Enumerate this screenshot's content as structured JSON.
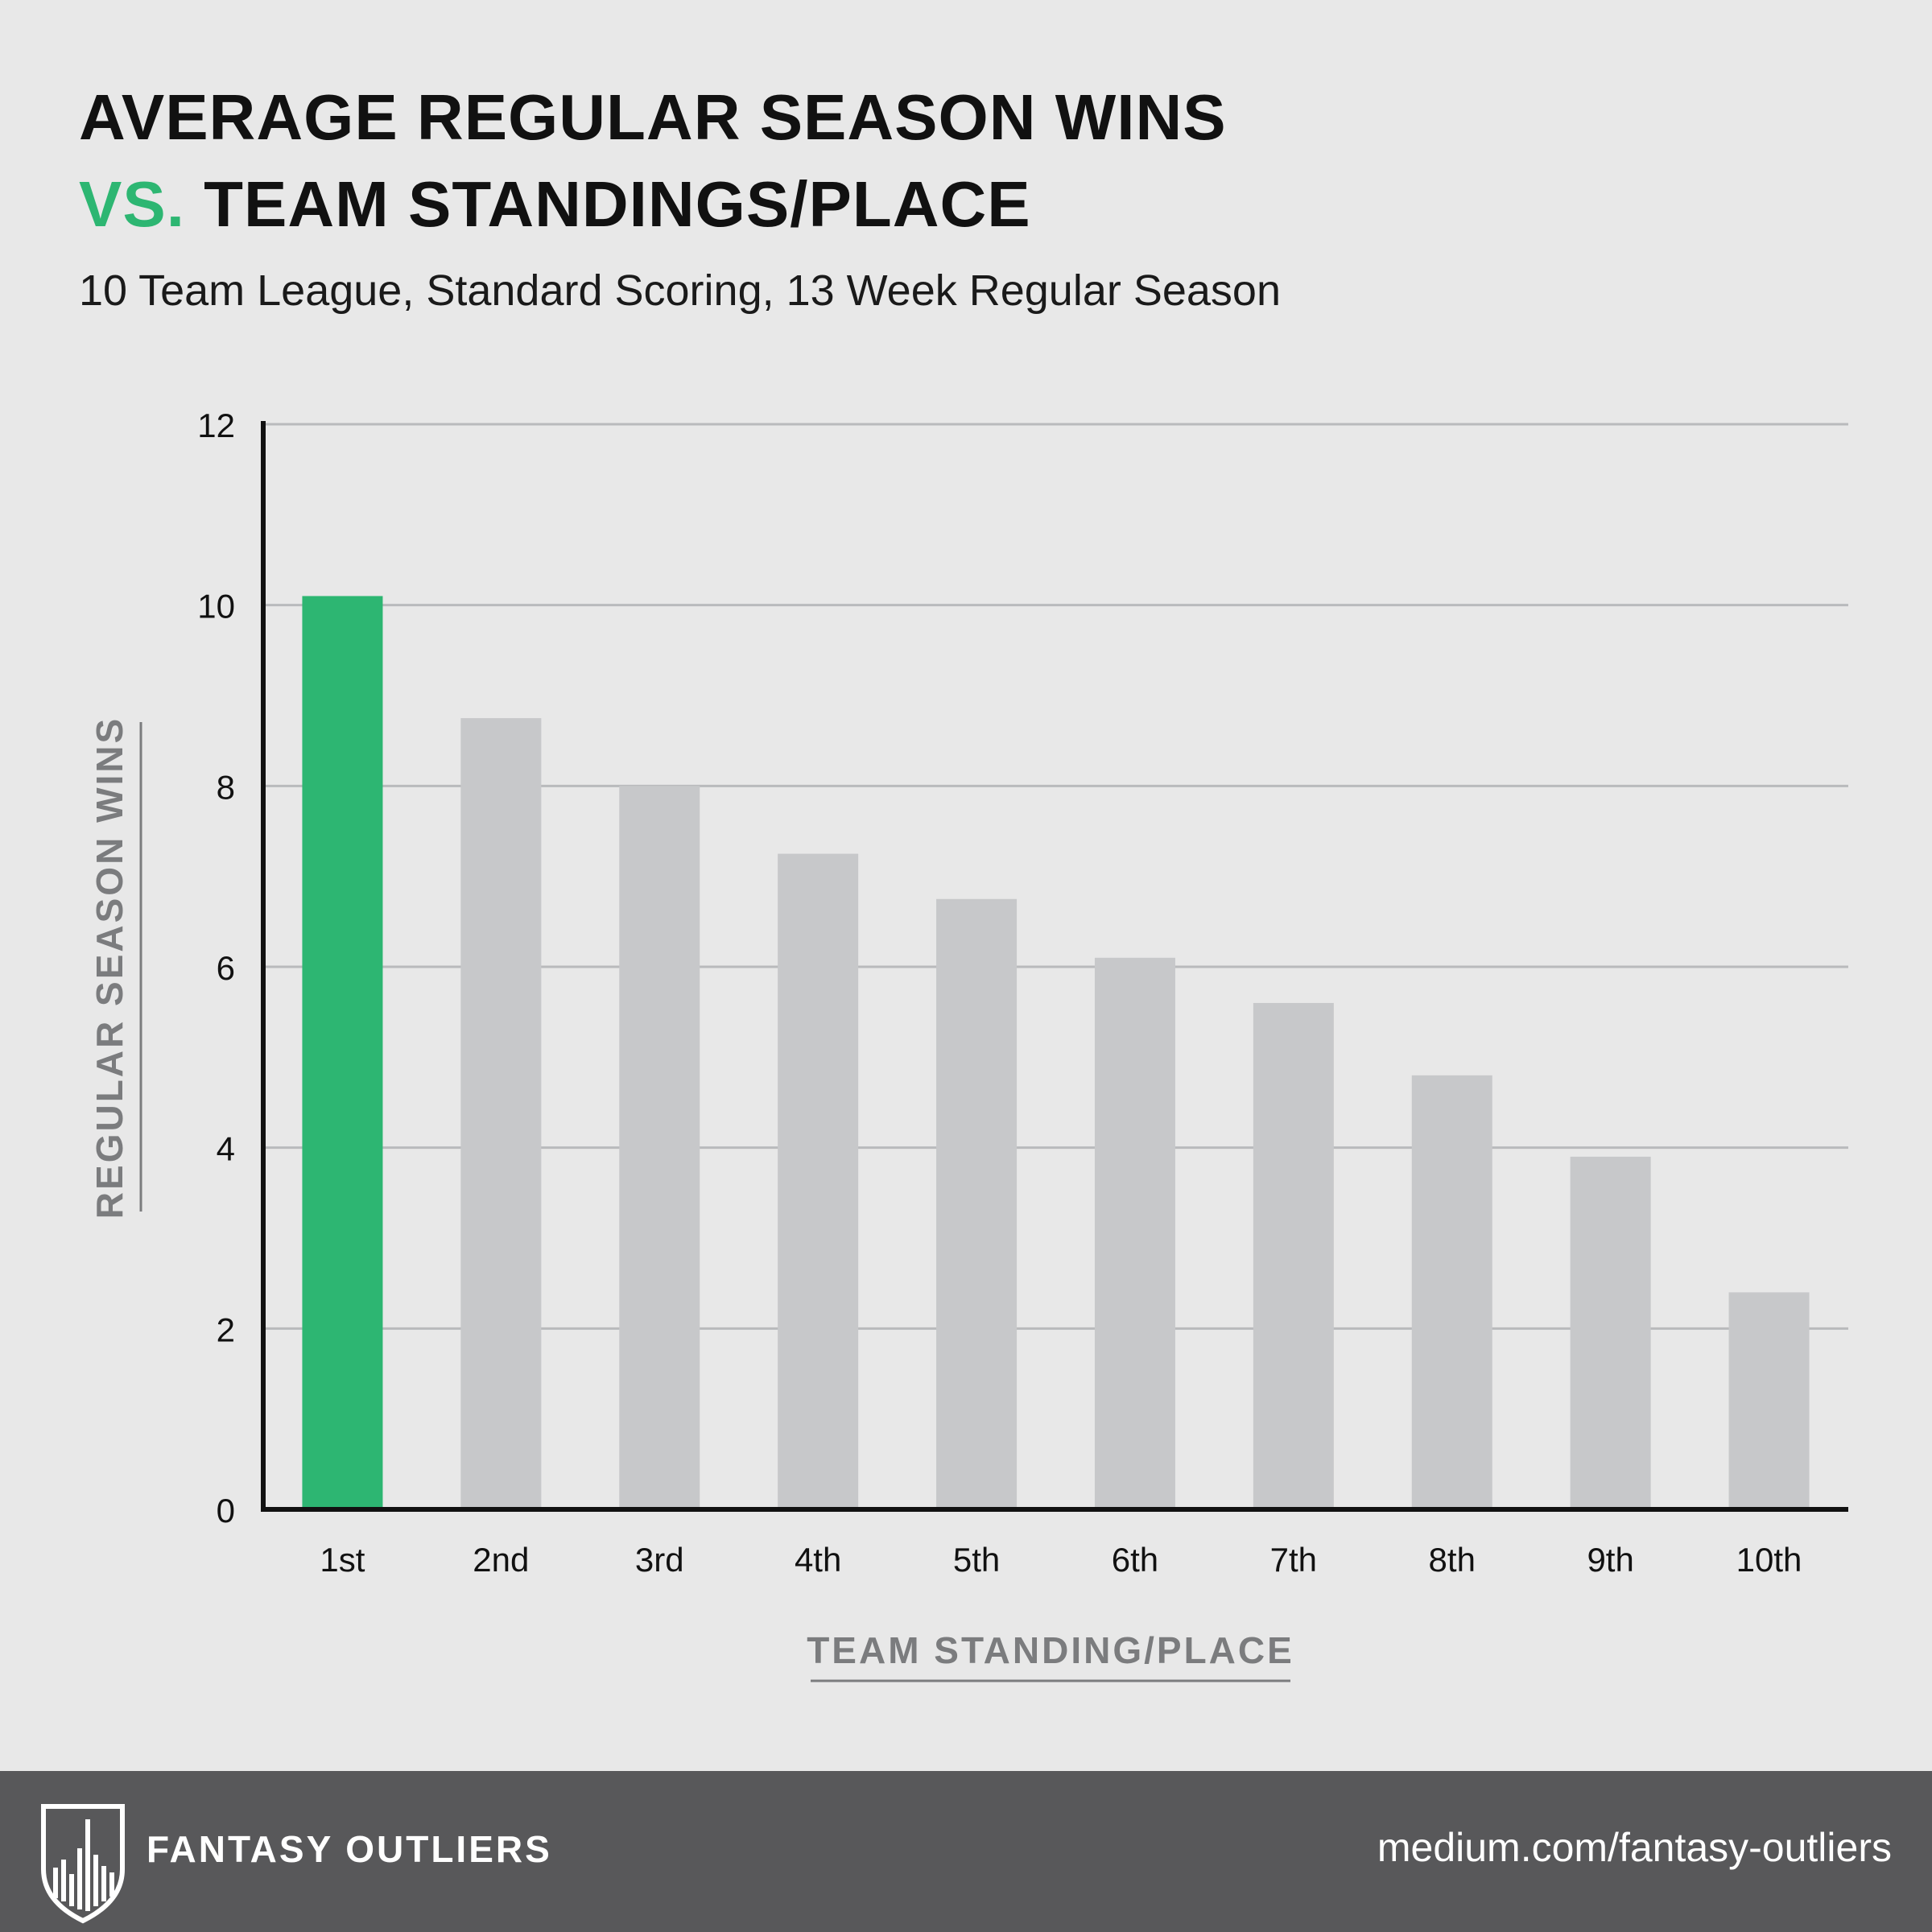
{
  "title": {
    "line1": "AVERAGE REGULAR SEASON WINS",
    "vs": "VS.",
    "line2_rest": " TEAM STANDINGS/PLACE"
  },
  "subtitle": "10 Team League, Standard Scoring, 13 Week Regular Season",
  "footer": {
    "brand": "FANTASY OUTLIERS",
    "url": "medium.com/fantasy-outliers",
    "logo_icon": "shield-skyline-icon"
  },
  "colors": {
    "background": "#e8e8e8",
    "highlight": "#2db672",
    "bar": "#c7c8ca",
    "footer": "#58585a"
  },
  "chart_data": {
    "type": "bar",
    "categories": [
      "1st",
      "2nd",
      "3rd",
      "4th",
      "5th",
      "6th",
      "7th",
      "8th",
      "9th",
      "10th"
    ],
    "values": [
      10.1,
      8.75,
      8.0,
      7.25,
      6.75,
      6.1,
      5.6,
      4.8,
      3.9,
      2.4
    ],
    "highlight_index": 0,
    "xlabel": "TEAM STANDING/PLACE",
    "ylabel": "REGULAR SEASON WINS",
    "ylim": [
      0,
      12
    ],
    "yticks": [
      0,
      2,
      4,
      6,
      8,
      10,
      12
    ],
    "grid": true
  }
}
